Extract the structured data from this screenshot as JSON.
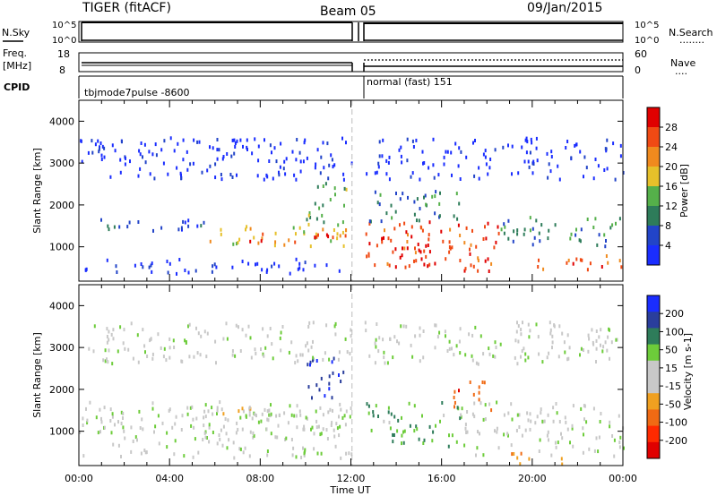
{
  "header": {
    "title": "TIGER (fitACF)",
    "beam": "Beam 05",
    "date": "09/Jan/2015"
  },
  "left_labels": {
    "nsky": "N.Sky",
    "freq": "Freq.",
    "freq_unit": "[MHz]",
    "cpid": "CPID"
  },
  "right_labels": {
    "nsearch": "N.Search",
    "nsearch_dots": "........",
    "nave": "Nave",
    "nave_dots": "...."
  },
  "noise_ticks": {
    "left": [
      "10^5",
      "10^0"
    ],
    "right": [
      "10^5",
      "10^0"
    ]
  },
  "freq_ticks": {
    "left": [
      "18",
      "8"
    ],
    "right": [
      "60",
      "0"
    ]
  },
  "cpid": {
    "first": "tbjmode7pulse -8600",
    "second": "normal (fast) 151"
  },
  "x_axis": {
    "label": "Time UT",
    "ticks": [
      "00:00",
      "04:00",
      "08:00",
      "12:00",
      "16:00",
      "20:00",
      "00:00"
    ]
  },
  "colors": {
    "power": [
      "#1a2dff",
      "#2244c8",
      "#2e7c5a",
      "#55b04a",
      "#e6c02a",
      "#f08a1e",
      "#f04a14",
      "#e00000"
    ],
    "velocity": [
      "#1a2dff",
      "#2a3e9c",
      "#2e7c5a",
      "#6dcc3a",
      "#c8c8c8",
      "#c8c8c8",
      "#f0a020",
      "#f06a14",
      "#ff2a00",
      "#e00000"
    ],
    "gap_marker": "#bbbbbb"
  },
  "chart_data": [
    {
      "type": "heatmap",
      "title": "",
      "xlabel": "Time UT",
      "ylabel": "Slant Range [km]",
      "xlim": [
        "00:00",
        "24:00"
      ],
      "ylim": [
        180,
        4500
      ],
      "x_ticks": [
        "00:00",
        "04:00",
        "08:00",
        "12:00",
        "16:00",
        "20:00",
        "00:00"
      ],
      "y_ticks": [
        "1000",
        "2000",
        "3000",
        "4000"
      ],
      "colorbar": {
        "label": "Power [dB]",
        "ticks": [
          "4",
          "8",
          "12",
          "16",
          "20",
          "24",
          "28"
        ],
        "range": [
          0,
          32
        ]
      },
      "regions": [
        {
          "t": [
            0.0,
            5.5
          ],
          "r": [
            1350,
            1680
          ],
          "level": 1
        },
        {
          "t": [
            0.2,
            12.0
          ],
          "r": [
            350,
            700
          ],
          "level": 0
        },
        {
          "t": [
            5.5,
            11.8
          ],
          "r": [
            1000,
            1500
          ],
          "level": 4
        },
        {
          "t": [
            7.5,
            11.8
          ],
          "r": [
            1100,
            1350
          ],
          "level": 6
        },
        {
          "t": [
            10.0,
            11.8
          ],
          "r": [
            1500,
            2600
          ],
          "level": 3
        },
        {
          "t": [
            12.6,
            18.5
          ],
          "r": [
            400,
            1600
          ],
          "level": 6
        },
        {
          "t": [
            13.5,
            15.5
          ],
          "r": [
            500,
            1200
          ],
          "level": 7
        },
        {
          "t": [
            12.8,
            17.0
          ],
          "r": [
            1600,
            2400
          ],
          "level": 2
        },
        {
          "t": [
            18.5,
            24.0
          ],
          "r": [
            1000,
            1700
          ],
          "level": 2
        },
        {
          "t": [
            20.0,
            24.0
          ],
          "r": [
            450,
            800
          ],
          "level": 6
        },
        {
          "t": [
            0.0,
            24.0
          ],
          "r": [
            2600,
            3600
          ],
          "level": 0
        }
      ]
    },
    {
      "type": "heatmap",
      "title": "",
      "xlabel": "Time UT",
      "ylabel": "Slant Range [km]",
      "xlim": [
        "00:00",
        "24:00"
      ],
      "ylim": [
        180,
        4500
      ],
      "x_ticks": [
        "00:00",
        "04:00",
        "08:00",
        "12:00",
        "16:00",
        "20:00",
        "00:00"
      ],
      "y_ticks": [
        "1000",
        "2000",
        "3000",
        "4000"
      ],
      "colorbar": {
        "label": "Velocity [m s-1]",
        "ticks": [
          "200",
          "100",
          "50",
          "15",
          "-15",
          "-50",
          "-100",
          "-200"
        ],
        "range": [
          -250,
          250
        ]
      },
      "regions": [
        {
          "t": [
            0.0,
            12.0
          ],
          "r": [
            350,
            1700
          ],
          "level": 0
        },
        {
          "t": [
            5.0,
            11.5
          ],
          "r": [
            900,
            1500
          ],
          "level": 0
        },
        {
          "t": [
            6.0,
            9.0
          ],
          "r": [
            1300,
            1600
          ],
          "level": -60
        },
        {
          "t": [
            10.0,
            11.8
          ],
          "r": [
            1700,
            2800
          ],
          "level": 180
        },
        {
          "t": [
            12.6,
            17.0
          ],
          "r": [
            600,
            1700
          ],
          "level": 40
        },
        {
          "t": [
            16.5,
            18.2
          ],
          "r": [
            1500,
            2200
          ],
          "level": -180
        },
        {
          "t": [
            17.0,
            24.0
          ],
          "r": [
            400,
            1700
          ],
          "level": 0
        },
        {
          "t": [
            19.0,
            21.5
          ],
          "r": [
            200,
            500
          ],
          "level": -80
        },
        {
          "t": [
            0.0,
            24.0
          ],
          "r": [
            2600,
            3600
          ],
          "level": 0
        }
      ]
    }
  ]
}
